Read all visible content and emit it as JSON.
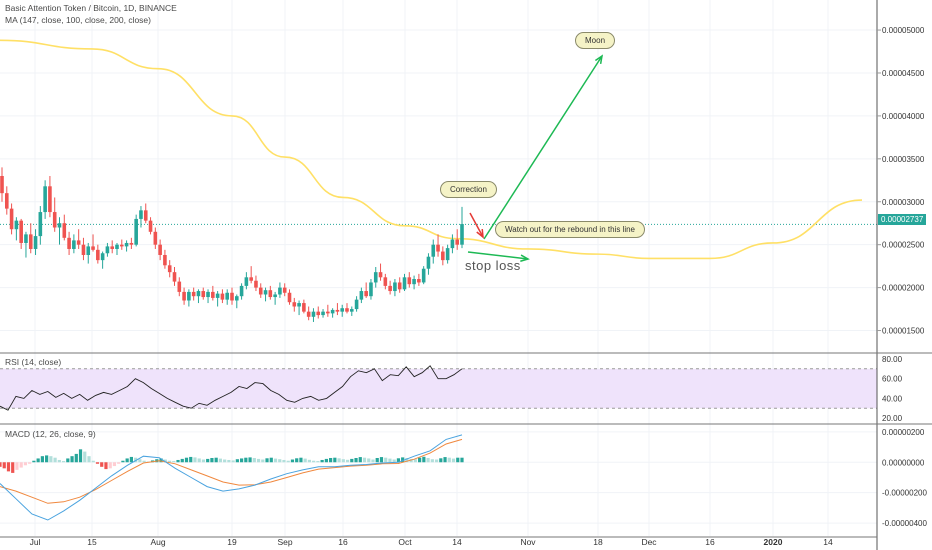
{
  "header": {
    "symbol": "Basic Attention Token / Bitcoin, 1D, BINANCE",
    "ma_legend": "MA (147, close, 100, close, 200, close)"
  },
  "panes": {
    "rsi_legend": "RSI (14, close)",
    "macd_legend": "MACD (12, 26, close, 9)"
  },
  "price_tag": "0.00002737",
  "annotations": {
    "moon": "Moon",
    "correction": "Correction",
    "rebound": "Watch out for the rebound in this line",
    "stop_loss": "stop loss"
  },
  "colors": {
    "up": "#26a69a",
    "down": "#ef5350",
    "ma": "#ffe066",
    "rsi": "#222222",
    "rsi_band": "#efe3fb",
    "macd": "#4aa3df",
    "signal": "#f0883e",
    "arrow_green": "#1db954",
    "arrow_red": "#e53935"
  },
  "chart_data": [
    {
      "type": "candlestick",
      "title": "Basic Attention Token / Bitcoin, 1D, BINANCE",
      "x_ticks": [
        "Jul",
        "15",
        "Aug",
        "19",
        "Sep",
        "16",
        "Oct",
        "14",
        "Nov",
        "18",
        "Dec",
        "16",
        "2020",
        "14"
      ],
      "y_ticks": [
        "0.00005000",
        "0.00004500",
        "0.00004000",
        "0.00003500",
        "0.00003000",
        "0.00002500",
        "0.00002000",
        "0.00001500"
      ],
      "ylim": [
        1.25e-05,
        5.35e-05
      ],
      "last_price": 2.737e-05,
      "candles": [
        [
          3.3e-05,
          3.4e-05,
          3e-05,
          3.1e-05
        ],
        [
          3.1e-05,
          3.18e-05,
          2.85e-05,
          2.92e-05
        ],
        [
          2.92e-05,
          2.98e-05,
          2.62e-05,
          2.68e-05
        ],
        [
          2.68e-05,
          2.82e-05,
          2.55e-05,
          2.78e-05
        ],
        [
          2.78e-05,
          2.8e-05,
          2.45e-05,
          2.52e-05
        ],
        [
          2.52e-05,
          2.65e-05,
          2.35e-05,
          2.62e-05
        ],
        [
          2.62e-05,
          2.75e-05,
          2.4e-05,
          2.45e-05
        ],
        [
          2.45e-05,
          2.68e-05,
          2.38e-05,
          2.6e-05
        ],
        [
          2.6e-05,
          2.95e-05,
          2.5e-05,
          2.88e-05
        ],
        [
          2.88e-05,
          3.25e-05,
          2.8e-05,
          3.18e-05
        ],
        [
          3.18e-05,
          3.3e-05,
          2.82e-05,
          2.88e-05
        ],
        [
          2.88e-05,
          3.05e-05,
          2.65e-05,
          2.7e-05
        ],
        [
          2.7e-05,
          2.82e-05,
          2.5e-05,
          2.75e-05
        ],
        [
          2.75e-05,
          2.85e-05,
          2.55e-05,
          2.58e-05
        ],
        [
          2.58e-05,
          2.65e-05,
          2.38e-05,
          2.45e-05
        ],
        [
          2.45e-05,
          2.62e-05,
          2.4e-05,
          2.55e-05
        ],
        [
          2.55e-05,
          2.68e-05,
          2.45e-05,
          2.5e-05
        ],
        [
          2.5e-05,
          2.58e-05,
          2.32e-05,
          2.38e-05
        ],
        [
          2.38e-05,
          2.52e-05,
          2.28e-05,
          2.48e-05
        ],
        [
          2.48e-05,
          2.62e-05,
          2.42e-05,
          2.44e-05
        ],
        [
          2.44e-05,
          2.5e-05,
          2.28e-05,
          2.32e-05
        ],
        [
          2.32e-05,
          2.42e-05,
          2.22e-05,
          2.4e-05
        ],
        [
          2.4e-05,
          2.52e-05,
          2.36e-05,
          2.48e-05
        ],
        [
          2.48e-05,
          2.55e-05,
          2.4e-05,
          2.45e-05
        ],
        [
          2.45e-05,
          2.52e-05,
          2.38e-05,
          2.5e-05
        ],
        [
          2.5e-05,
          2.56e-05,
          2.44e-05,
          2.48e-05
        ],
        [
          2.48e-05,
          2.55e-05,
          2.42e-05,
          2.52e-05
        ],
        [
          2.52e-05,
          2.58e-05,
          2.45e-05,
          2.5e-05
        ],
        [
          2.5e-05,
          2.85e-05,
          2.48e-05,
          2.8e-05
        ],
        [
          2.8e-05,
          2.95e-05,
          2.7e-05,
          2.9e-05
        ],
        [
          2.9e-05,
          2.98e-05,
          2.75e-05,
          2.78e-05
        ],
        [
          2.78e-05,
          2.82e-05,
          2.62e-05,
          2.65e-05
        ],
        [
          2.65e-05,
          2.7e-05,
          2.45e-05,
          2.5e-05
        ],
        [
          2.5e-05,
          2.56e-05,
          2.32e-05,
          2.38e-05
        ],
        [
          2.38e-05,
          2.44e-05,
          2.22e-05,
          2.26e-05
        ],
        [
          2.26e-05,
          2.32e-05,
          2.12e-05,
          2.18e-05
        ],
        [
          2.18e-05,
          2.24e-05,
          2.02e-05,
          2.07e-05
        ],
        [
          2.07e-05,
          2.12e-05,
          1.9e-05,
          1.95e-05
        ],
        [
          1.95e-05,
          2e-05,
          1.8e-05,
          1.85e-05
        ],
        [
          1.85e-05,
          1.98e-05,
          1.78e-05,
          1.95e-05
        ],
        [
          1.95e-05,
          2e-05,
          1.85e-05,
          1.9e-05
        ],
        [
          1.9e-05,
          1.98e-05,
          1.82e-05,
          1.96e-05
        ],
        [
          1.96e-05,
          2e-05,
          1.86e-05,
          1.89e-05
        ],
        [
          1.89e-05,
          1.98e-05,
          1.82e-05,
          1.95e-05
        ],
        [
          1.95e-05,
          2.02e-05,
          1.85e-05,
          1.88e-05
        ],
        [
          1.88e-05,
          1.96e-05,
          1.78e-05,
          1.93e-05
        ],
        [
          1.93e-05,
          1.98e-05,
          1.82e-05,
          1.86e-05
        ],
        [
          1.86e-05,
          1.98e-05,
          1.8e-05,
          1.94e-05
        ],
        [
          1.94e-05,
          2e-05,
          1.8e-05,
          1.85e-05
        ],
        [
          1.85e-05,
          1.92e-05,
          1.76e-05,
          1.9e-05
        ],
        [
          1.9e-05,
          2.05e-05,
          1.86e-05,
          2.02e-05
        ],
        [
          2.02e-05,
          2.18e-05,
          1.98e-05,
          2.12e-05
        ],
        [
          2.12e-05,
          2.25e-05,
          2.05e-05,
          2.08e-05
        ],
        [
          2.08e-05,
          2.14e-05,
          1.96e-05,
          2e-05
        ],
        [
          2e-05,
          2.05e-05,
          1.88e-05,
          1.92e-05
        ],
        [
          1.92e-05,
          2e-05,
          1.84e-05,
          1.97e-05
        ],
        [
          1.97e-05,
          2.02e-05,
          1.86e-05,
          1.89e-05
        ],
        [
          1.89e-05,
          1.95e-05,
          1.8e-05,
          1.92e-05
        ],
        [
          1.92e-05,
          2.06e-05,
          1.88e-05,
          2e-05
        ],
        [
          2e-05,
          2.05e-05,
          1.9e-05,
          1.94e-05
        ],
        [
          1.94e-05,
          1.98e-05,
          1.8e-05,
          1.83e-05
        ],
        [
          1.83e-05,
          1.88e-05,
          1.72e-05,
          1.78e-05
        ],
        [
          1.78e-05,
          1.85e-05,
          1.68e-05,
          1.82e-05
        ],
        [
          1.82e-05,
          1.86e-05,
          1.7e-05,
          1.72e-05
        ],
        [
          1.72e-05,
          1.78e-05,
          1.62e-05,
          1.66e-05
        ],
        [
          1.66e-05,
          1.76e-05,
          1.6e-05,
          1.72e-05
        ],
        [
          1.72e-05,
          1.78e-05,
          1.64e-05,
          1.68e-05
        ],
        [
          1.68e-05,
          1.75e-05,
          1.65e-05,
          1.72e-05
        ],
        [
          1.72e-05,
          1.8e-05,
          1.66e-05,
          1.7e-05
        ],
        [
          1.7e-05,
          1.76e-05,
          1.65e-05,
          1.74e-05
        ],
        [
          1.74e-05,
          1.82e-05,
          1.68e-05,
          1.72e-05
        ],
        [
          1.72e-05,
          1.8e-05,
          1.66e-05,
          1.76e-05
        ],
        [
          1.76e-05,
          1.82e-05,
          1.7e-05,
          1.72e-05
        ],
        [
          1.72e-05,
          1.78e-05,
          1.67e-05,
          1.75e-05
        ],
        [
          1.75e-05,
          1.9e-05,
          1.72e-05,
          1.86e-05
        ],
        [
          1.86e-05,
          2e-05,
          1.82e-05,
          1.96e-05
        ],
        [
          1.96e-05,
          2.06e-05,
          1.88e-05,
          1.9e-05
        ],
        [
          1.9e-05,
          2.1e-05,
          1.86e-05,
          2.06e-05
        ],
        [
          2.06e-05,
          2.24e-05,
          2e-05,
          2.18e-05
        ],
        [
          2.18e-05,
          2.28e-05,
          2.08e-05,
          2.12e-05
        ],
        [
          2.12e-05,
          2.16e-05,
          1.98e-05,
          2.02e-05
        ],
        [
          2.02e-05,
          2.08e-05,
          1.92e-05,
          1.96e-05
        ],
        [
          1.96e-05,
          2.1e-05,
          1.9e-05,
          2.06e-05
        ],
        [
          2.06e-05,
          2.12e-05,
          1.94e-05,
          1.98e-05
        ],
        [
          1.98e-05,
          2.16e-05,
          1.96e-05,
          2.12e-05
        ],
        [
          2.12e-05,
          2.18e-05,
          2e-05,
          2.04e-05
        ],
        [
          2.04e-05,
          2.14e-05,
          1.98e-05,
          2.1e-05
        ],
        [
          2.1e-05,
          2.16e-05,
          2.02e-05,
          2.06e-05
        ],
        [
          2.06e-05,
          2.25e-05,
          2.04e-05,
          2.22e-05
        ],
        [
          2.22e-05,
          2.4e-05,
          2.15e-05,
          2.36e-05
        ],
        [
          2.36e-05,
          2.56e-05,
          2.28e-05,
          2.5e-05
        ],
        [
          2.5e-05,
          2.62e-05,
          2.36e-05,
          2.42e-05
        ],
        [
          2.42e-05,
          2.48e-05,
          2.26e-05,
          2.32e-05
        ],
        [
          2.32e-05,
          2.5e-05,
          2.28e-05,
          2.46e-05
        ],
        [
          2.46e-05,
          2.62e-05,
          2.4e-05,
          2.56e-05
        ],
        [
          2.56e-05,
          2.68e-05,
          2.44e-05,
          2.5e-05
        ],
        [
          2.5e-05,
          2.94e-05,
          2.46e-05,
          2.74e-05
        ]
      ],
      "moving_average": {
        "name": "MA (147, close, 100, close, 200, close)",
        "points": [
          [
            "Jul",
            4.88e-05
          ],
          [
            "15",
            4.78e-05
          ],
          [
            "Aug",
            4.55e-05
          ],
          [
            "19",
            4e-05
          ],
          [
            "Sep",
            3.52e-05
          ],
          [
            "16",
            3.05e-05
          ],
          [
            "Oct",
            2.72e-05
          ],
          [
            "14",
            2.57e-05
          ],
          [
            "Nov",
            2.45e-05
          ],
          [
            "18",
            2.39e-05
          ],
          [
            "Dec",
            2.34e-05
          ],
          [
            "16",
            2.34e-05
          ],
          [
            "2020",
            2.52e-05
          ],
          [
            "14",
            3.02e-05
          ]
        ]
      }
    },
    {
      "type": "line",
      "title": "RSI (14, close)",
      "y_ticks": [
        "80.00",
        "60.00",
        "40.00",
        "20.00"
      ],
      "ylim": [
        15,
        84
      ],
      "band": [
        30,
        70
      ],
      "values": [
        32,
        28,
        42,
        40,
        48,
        44,
        47,
        41,
        45,
        40,
        44,
        38,
        43,
        46,
        44,
        48,
        52,
        60,
        56,
        50,
        45,
        40,
        36,
        32,
        30,
        35,
        33,
        38,
        42,
        46,
        52,
        50,
        56,
        55,
        48,
        44,
        38,
        36,
        40,
        42,
        38,
        40,
        46,
        52,
        62,
        68,
        66,
        70,
        58,
        64,
        63,
        72,
        62,
        66,
        73,
        60,
        60,
        64,
        70
      ]
    },
    {
      "type": "line",
      "title": "MACD (12, 26, close, 9)",
      "y_ticks": [
        "0.00000200",
        "0.00000000",
        "-0.00000200",
        "-0.00000400"
      ],
      "ylim": [
        -4.85e-06,
        2.45e-06
      ],
      "series": [
        {
          "values": [
            -1.4e-06,
            -2.4e-06,
            -3.4e-06,
            -3.8e-06,
            -3.2e-06,
            -2.5e-06,
            -1.7e-06,
            -9e-07,
            -2e-07,
            4e-07,
            3e-07,
            -4e-07,
            -1e-06,
            -1.6e-06,
            -1.9e-06,
            -1.75e-06,
            -1.5e-06,
            -1.1e-06,
            -7.5e-07,
            -5e-07,
            -3e-07,
            -3e-07,
            -2e-07,
            -1.5e-07,
            -5e-08,
            0.0,
            4e-07,
            7.5e-07,
            1.5e-06,
            1.8e-06
          ]
        },
        {
          "values": [
            -1.6e-06,
            -1.9e-06,
            -2.3e-06,
            -2.7e-06,
            -2.6e-06,
            -2.3e-06,
            -1.8e-06,
            -1.2e-06,
            -6e-07,
            -5e-08,
            1e-07,
            -1e-07,
            -5e-07,
            -9e-07,
            -1.3e-06,
            -1.5e-06,
            -1.48e-06,
            -1.3e-06,
            -1e-06,
            -7e-07,
            -4.5e-07,
            -3.5e-07,
            -2.5e-07,
            -2e-07,
            -1e-07,
            -8e-08,
            2e-07,
            6e-07,
            1.2e-06,
            1.5e-06
          ]
        }
      ],
      "histogram": [
        -3e-07,
        -4e-07,
        -6e-07,
        -7e-07,
        -5e-07,
        -3.5e-07,
        -2e-07,
        -1e-07,
        1e-07,
        2.5e-07,
        4e-07,
        4.5e-07,
        4e-07,
        3e-07,
        1.5e-07,
        8e-08,
        2.5e-07,
        4e-07,
        5.5e-07,
        8.5e-07,
        7e-07,
        4e-07,
        1e-07,
        -1e-07,
        -3e-07,
        -4.5e-07,
        -4e-07,
        -2.5e-07,
        -1e-07,
        1e-07,
        2.5e-07,
        3.5e-07,
        3e-07,
        2e-07,
        1e-07,
        5e-08,
        1.2e-07,
        2e-07,
        2.5e-07,
        1.8e-07,
        1e-07,
        8e-08,
        1.5e-07,
        2.2e-07,
        3e-07,
        3.5e-07,
        3.2e-07,
        2.5e-07,
        1.8e-07,
        2.2e-07,
        2.8e-07,
        3e-07,
        2.4e-07,
        1.8e-07,
        1.5e-07,
        1.2e-07,
        2e-07,
        2.5e-07,
        3e-07,
        3.2e-07,
        2.8e-07,
        2.2e-07,
        1.8e-07,
        2.6e-07,
        3e-07,
        2.4e-07,
        2e-07,
        1.5e-07,
        1e-07,
        1.8e-07,
        2.6e-07,
        3e-07,
        2.4e-07,
        1.6e-07,
        1e-07,
        8e-08,
        1.5e-07,
        2.2e-07,
        2.8e-07,
        3e-07,
        2.6e-07,
        2e-07,
        1.6e-07,
        2.2e-07,
        2.8e-07,
        3.4e-07,
        3e-07,
        2.5e-07,
        1.8e-07,
        2.8e-07,
        3.4e-07,
        3e-07,
        2.4e-07,
        1.8e-07,
        2.6e-07,
        3.2e-07,
        2.8e-07,
        2.2e-07,
        2e-07,
        3e-07,
        3.6e-07,
        2.8e-07,
        2e-07,
        1.8e-07,
        2.6e-07,
        3.4e-07,
        3e-07,
        2.4e-07,
        3e-07,
        3e-07
      ]
    }
  ]
}
